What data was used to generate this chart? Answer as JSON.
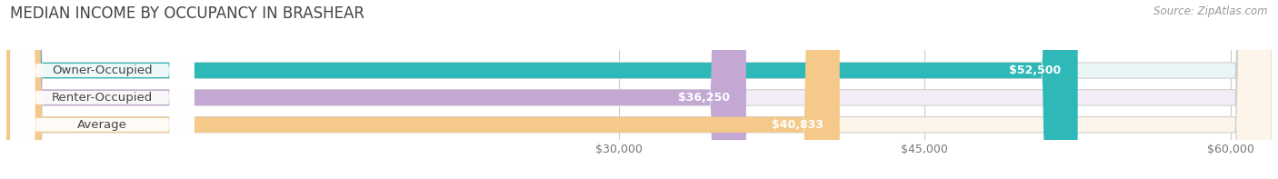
{
  "title": "MEDIAN INCOME BY OCCUPANCY IN BRASHEAR",
  "source": "Source: ZipAtlas.com",
  "categories": [
    "Owner-Occupied",
    "Renter-Occupied",
    "Average"
  ],
  "values": [
    52500,
    36250,
    40833
  ],
  "labels": [
    "$52,500",
    "$36,250",
    "$40,833"
  ],
  "bar_colors": [
    "#2eb8b8",
    "#c4a8d4",
    "#f5c98a"
  ],
  "bar_bg_colors": [
    "#eaf5f5",
    "#f2edf6",
    "#fdf5ea"
  ],
  "xmin": 0,
  "xmax": 62000,
  "xticks": [
    30000,
    45000,
    60000
  ],
  "xtick_labels": [
    "$30,000",
    "$45,000",
    "$60,000"
  ],
  "title_fontsize": 12,
  "source_fontsize": 8.5,
  "label_fontsize": 9,
  "bar_label_fontsize": 9,
  "category_fontsize": 9.5,
  "figsize": [
    14.06,
    1.97
  ],
  "dpi": 100
}
